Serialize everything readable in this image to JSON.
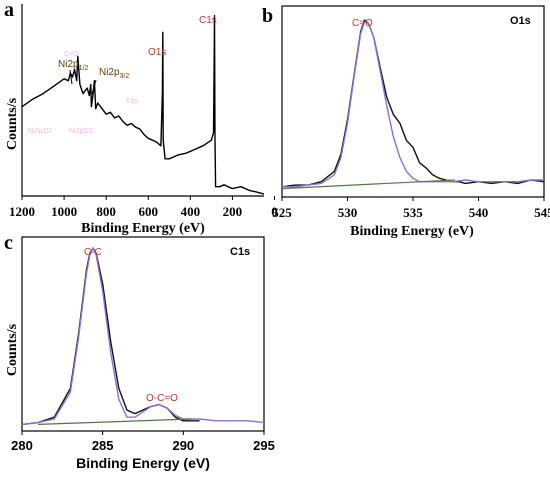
{
  "chart_data": [
    {
      "panel": "a",
      "type": "line",
      "xlabel": "Binding Energy (eV)",
      "ylabel": "Counts/s",
      "xlim": [
        1200,
        50
      ],
      "x_reversed": true,
      "x_ticks": [
        "1200",
        "1000",
        "800",
        "600",
        "400",
        "200",
        "0"
      ],
      "annotations": [
        {
          "text": "O1s",
          "x": 531
        },
        {
          "text": "C1s",
          "x": 285
        },
        {
          "text": "Ni2p",
          "sub": "1/2",
          "x": 873
        },
        {
          "text": "Ni2p",
          "sub": "3/2",
          "x": 856
        }
      ],
      "series": [
        {
          "color": "#000000",
          "x": [
            1200,
            1150,
            1100,
            1050,
            1000,
            980,
            970,
            960,
            950,
            940,
            935,
            925,
            910,
            890,
            880,
            873,
            870,
            862,
            856,
            850,
            840,
            820,
            800,
            780,
            760,
            740,
            720,
            700,
            680,
            660,
            640,
            620,
            600,
            580,
            560,
            540,
            533,
            531,
            529,
            520,
            500,
            460,
            420,
            380,
            340,
            300,
            290,
            287,
            285,
            283,
            280,
            260,
            240,
            200,
            160,
            120,
            80,
            50
          ],
          "y": [
            0.48,
            0.52,
            0.55,
            0.59,
            0.63,
            0.62,
            0.66,
            0.64,
            0.68,
            0.62,
            0.75,
            0.6,
            0.55,
            0.58,
            0.54,
            0.6,
            0.48,
            0.55,
            0.62,
            0.47,
            0.5,
            0.47,
            0.44,
            0.45,
            0.42,
            0.43,
            0.4,
            0.38,
            0.39,
            0.37,
            0.36,
            0.33,
            0.31,
            0.3,
            0.29,
            0.27,
            0.56,
            0.88,
            0.3,
            0.2,
            0.2,
            0.22,
            0.23,
            0.25,
            0.27,
            0.3,
            0.34,
            0.68,
            0.97,
            0.3,
            0.05,
            0.05,
            0.06,
            0.04,
            0.05,
            0.03,
            0.02,
            0.01
          ]
        }
      ]
    },
    {
      "panel": "b",
      "type": "line",
      "title": "O1s",
      "xlabel": "Binding Energy (eV)",
      "xlim": [
        525,
        545
      ],
      "x_ticks": [
        "525",
        "530",
        "535",
        "540",
        "545"
      ],
      "annotations": [
        {
          "text": "C=O",
          "x": 531.5
        }
      ],
      "series": [
        {
          "color": "#111111",
          "x": [
            525,
            526,
            527,
            528,
            529,
            529.5,
            530,
            530.5,
            531,
            531.3,
            531.6,
            532,
            532.5,
            533,
            533.5,
            534,
            534.5,
            535,
            535.5,
            536,
            536.5,
            537,
            537.5,
            538,
            538.5,
            539,
            540,
            541,
            542,
            543,
            544,
            545
          ],
          "y": [
            0.03,
            0.04,
            0.04,
            0.06,
            0.12,
            0.22,
            0.42,
            0.68,
            0.93,
            1.0,
            0.98,
            0.9,
            0.72,
            0.55,
            0.45,
            0.4,
            0.3,
            0.26,
            0.17,
            0.14,
            0.1,
            0.08,
            0.07,
            0.06,
            0.06,
            0.05,
            0.06,
            0.05,
            0.06,
            0.05,
            0.07,
            0.06
          ]
        },
        {
          "color": "#8e6fd8",
          "x": [
            525,
            526,
            527,
            528,
            529,
            529.5,
            530,
            530.5,
            531,
            531.3,
            531.6,
            532,
            532.5,
            533,
            533.5,
            534,
            534.5,
            535,
            535.5,
            536,
            537,
            538,
            539,
            540,
            541,
            542,
            543,
            544,
            545
          ],
          "y": [
            0.03,
            0.03,
            0.04,
            0.05,
            0.1,
            0.2,
            0.4,
            0.67,
            0.92,
            0.99,
            0.98,
            0.9,
            0.7,
            0.5,
            0.32,
            0.2,
            0.12,
            0.08,
            0.06,
            0.06,
            0.06,
            0.06,
            0.07,
            0.06,
            0.06,
            0.06,
            0.06,
            0.07,
            0.07
          ]
        },
        {
          "color": "#4d7a40",
          "x": [
            525,
            538.2
          ],
          "y": [
            0.02,
            0.07
          ]
        }
      ]
    },
    {
      "panel": "c",
      "type": "line",
      "title": "C1s",
      "xlabel": "Binding Energy (eV)",
      "ylabel": "Counts/s",
      "xlim": [
        280,
        295
      ],
      "x_ticks": [
        "280",
        "285",
        "290",
        "295"
      ],
      "annotations": [
        {
          "text": "C-C",
          "x": 284.4
        },
        {
          "text": "O-C=O",
          "x": 288.6
        }
      ],
      "series": [
        {
          "color": "#111111",
          "x": [
            280,
            281,
            282,
            283,
            283.5,
            284,
            284.2,
            284.4,
            284.6,
            285,
            285.5,
            286,
            286.5,
            287,
            287.5,
            288,
            288.5,
            289,
            289.5,
            290,
            290.5,
            291
          ],
          "y": [
            0.02,
            0.03,
            0.06,
            0.22,
            0.52,
            0.88,
            0.97,
            1.0,
            0.97,
            0.8,
            0.48,
            0.22,
            0.1,
            0.08,
            0.1,
            0.12,
            0.13,
            0.11,
            0.06,
            0.04,
            0.04,
            0.04
          ]
        },
        {
          "color": "#8e6fd8",
          "x": [
            280,
            281,
            282,
            283,
            283.5,
            284,
            284.2,
            284.4,
            284.6,
            285,
            285.5,
            286,
            286.5,
            287,
            287.5,
            288,
            288.5,
            289,
            289.5,
            290,
            291,
            292,
            293,
            294,
            295
          ],
          "y": [
            0.02,
            0.03,
            0.05,
            0.2,
            0.5,
            0.86,
            0.96,
            1.0,
            0.96,
            0.76,
            0.42,
            0.16,
            0.06,
            0.06,
            0.09,
            0.12,
            0.13,
            0.11,
            0.07,
            0.05,
            0.05,
            0.04,
            0.04,
            0.04,
            0.03
          ]
        },
        {
          "color": "#4d7a40",
          "x": [
            281,
            290.5
          ],
          "y": [
            0.02,
            0.05
          ]
        }
      ]
    }
  ]
}
